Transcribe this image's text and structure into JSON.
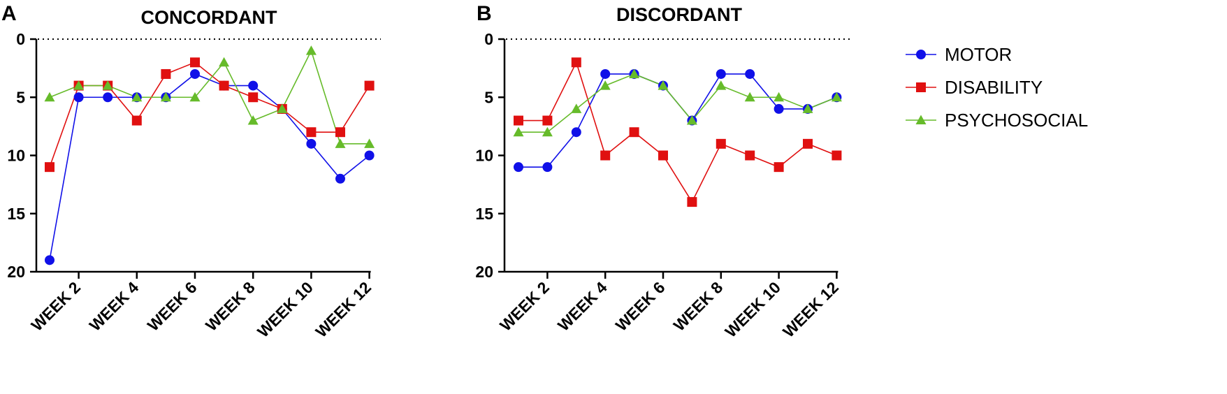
{
  "chart_data": [
    {
      "type": "line",
      "panel_label": "A",
      "title": "CONCORDANT",
      "x": [
        1,
        2,
        3,
        4,
        5,
        6,
        7,
        8,
        9,
        10,
        11,
        12
      ],
      "x_tick_labels": [
        "WEEK 2",
        "WEEK 4",
        "WEEK 6",
        "WEEK 8",
        "WEEK 10",
        "WEEK 12"
      ],
      "x_tick_positions": [
        2,
        4,
        6,
        8,
        10,
        12
      ],
      "ylim": [
        0,
        20
      ],
      "y_inverted": true,
      "y_ticks": [
        0,
        5,
        10,
        15,
        20
      ],
      "reference_line": {
        "y": 0,
        "style": "dotted"
      },
      "series": [
        {
          "name": "MOTOR",
          "color": "#1010e8",
          "marker": "circle",
          "values": [
            19,
            5,
            5,
            5,
            5,
            3,
            4,
            4,
            6,
            9,
            12,
            10
          ]
        },
        {
          "name": "DISABILITY",
          "color": "#e01010",
          "marker": "square",
          "values": [
            11,
            4,
            4,
            7,
            3,
            2,
            4,
            5,
            6,
            8,
            8,
            4
          ]
        },
        {
          "name": "PSYCHOSOCIAL",
          "color": "#66bb2a",
          "marker": "triangle",
          "values": [
            5,
            4,
            4,
            5,
            5,
            5,
            2,
            7,
            6,
            1,
            9,
            9
          ]
        }
      ]
    },
    {
      "type": "line",
      "panel_label": "B",
      "title": "DISCORDANT",
      "x": [
        1,
        2,
        3,
        4,
        5,
        6,
        7,
        8,
        9,
        10,
        11,
        12
      ],
      "x_tick_labels": [
        "WEEK 2",
        "WEEK 4",
        "WEEK 6",
        "WEEK 8",
        "WEEK 10",
        "WEEK 12"
      ],
      "x_tick_positions": [
        2,
        4,
        6,
        8,
        10,
        12
      ],
      "ylim": [
        0,
        20
      ],
      "y_inverted": true,
      "y_ticks": [
        0,
        5,
        10,
        15,
        20
      ],
      "reference_line": {
        "y": 0,
        "style": "dotted"
      },
      "series": [
        {
          "name": "MOTOR",
          "color": "#1010e8",
          "marker": "circle",
          "values": [
            11,
            11,
            8,
            3,
            3,
            4,
            7,
            3,
            3,
            6,
            6,
            5
          ]
        },
        {
          "name": "DISABILITY",
          "color": "#e01010",
          "marker": "square",
          "values": [
            7,
            7,
            2,
            10,
            8,
            10,
            14,
            9,
            10,
            11,
            9,
            10
          ]
        },
        {
          "name": "PSYCHOSOCIAL",
          "color": "#66bb2a",
          "marker": "triangle",
          "values": [
            8,
            8,
            6,
            4,
            3,
            4,
            7,
            4,
            5,
            5,
            6,
            5
          ]
        }
      ]
    }
  ],
  "legend": {
    "placement": "right",
    "items": [
      {
        "name": "MOTOR",
        "color": "#1010e8",
        "marker": "circle"
      },
      {
        "name": "DISABILITY",
        "color": "#e01010",
        "marker": "square"
      },
      {
        "name": "PSYCHOSOCIAL",
        "color": "#66bb2a",
        "marker": "triangle"
      }
    ]
  }
}
